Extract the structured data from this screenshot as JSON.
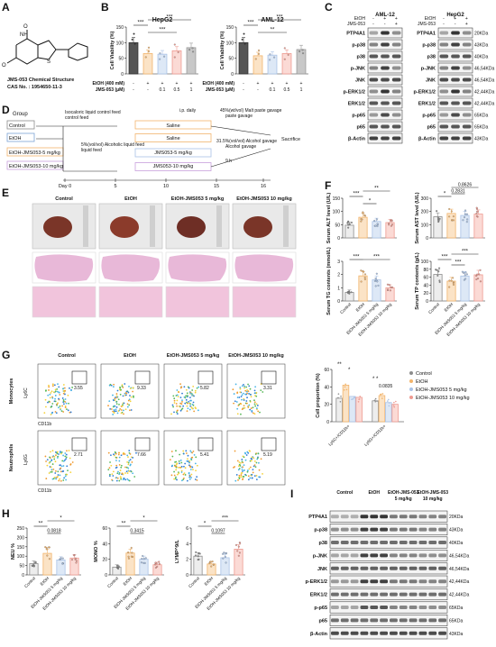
{
  "panels": {
    "A": {
      "letter": "A",
      "caption1": "JMS-053 Chemical Structure",
      "caption2": "CAS No. : 1954650-11-3",
      "atoms": [
        "NH",
        "O",
        "O",
        "S"
      ]
    },
    "B": {
      "letter": "B",
      "etoh_label": "EtOH (400 mM)",
      "jms_label": "JMS-053 (μM)",
      "etoh_signs": [
        "-",
        "+",
        "+",
        "+",
        "+"
      ],
      "jms_doses": [
        "-",
        "-",
        "0.1",
        "0.5",
        "1"
      ],
      "sig": [
        [
          "***",
          "***",
          "***"
        ],
        [
          "***",
          "**",
          "***"
        ]
      ]
    },
    "C": {
      "letter": "C",
      "row_labels": [
        "PTP4A1",
        "p-p38",
        "p38",
        "p-JNK",
        "JNK",
        "p-ERK1/2",
        "ERK1/2",
        "p-p65",
        "p65",
        "β-Actin"
      ],
      "kda": [
        "20KDa",
        "43KDa",
        "40KDa",
        "46,54KDa",
        "46,54KDa",
        "42,44KDa",
        "42,44KDa",
        "65KDa",
        "65KDa",
        "43KDa"
      ],
      "etoh": "EtOH",
      "jms": "JMS-053",
      "signs_etoh": [
        "-",
        "+",
        "+"
      ],
      "signs_jms": [
        "-",
        "-",
        "+"
      ]
    },
    "D": {
      "letter": "D",
      "group": "Group",
      "groups": [
        "Control",
        "EtOH",
        "EtOH-JMS053-5 mg/kg",
        "EtOH-JMS053-10 mg/kg"
      ],
      "notes": [
        "Isocaloric liquid control feed",
        "Isocaloric liquid control feed",
        "5%(vol/vol) Alcoholic liquid feed",
        "i.p. daily",
        "45%(wt/vol) Malt paste gavage",
        "31.5%(vol/vol) Alcohol gavage",
        "9 h",
        "Sacrifice"
      ],
      "bars": [
        "Saline",
        "Saline",
        "JMS053-5 mg/kg",
        "JMS053-10 mg/kg"
      ],
      "days": [
        "Day 0",
        "5",
        "10",
        "15",
        "16"
      ]
    },
    "E": {
      "letter": "E",
      "cols": [
        "Control",
        "EtOH",
        "EtOH-JMS053 5 mg/kg",
        "EtOH-JMS053 10 mg/kg"
      ]
    },
    "F": {
      "letter": "F",
      "sig": [
        [
          "***",
          "*",
          "**"
        ],
        [
          "*",
          "0.8626",
          "0.2831"
        ],
        [
          "***",
          "***"
        ],
        [
          "***",
          "***",
          "***"
        ]
      ]
    },
    "G": {
      "letter": "G",
      "cols": [
        "Control",
        "EtOH",
        "EtOH-JMS053 5 mg/kg",
        "EtOH-JMS053 10 mg/kg"
      ],
      "rows": [
        "Monocytes",
        "Neutrophils"
      ],
      "yaxes": [
        "Ly6C",
        "Ly6G"
      ],
      "xaxis": "CD11b",
      "pcts": [
        [
          "3.55",
          "9.33",
          "5.82",
          "3.31"
        ],
        [
          "2.71",
          "7.66",
          "5.41",
          "5.19"
        ]
      ],
      "sig": [
        "**",
        "*",
        "*",
        "*",
        "0.0835"
      ]
    },
    "H": {
      "letter": "H",
      "sig": [
        [
          "**",
          "0.0818",
          "*"
        ],
        [
          "**",
          "0.3415",
          "*"
        ],
        [
          "*",
          "0.1097",
          "***"
        ]
      ]
    },
    "I": {
      "letter": "I",
      "cols": [
        "Control",
        "EtOH",
        "EtOH-JMS-053 5 mg/kg",
        "EtOH-JMS-053 10 mg/kg"
      ],
      "row_labels": [
        "PTP4A1",
        "p-p38",
        "p38",
        "p-JNK",
        "JNK",
        "p-ERK1/2",
        "ERK1/2",
        "p-p65",
        "p65",
        "β-Actin"
      ],
      "kda": [
        "20KDa",
        "43KDa",
        "40KDa",
        "46,54KDa",
        "46,54KDa",
        "42,44KDa",
        "42,44KDa",
        "65KDa",
        "65KDa",
        "43KDa"
      ]
    },
    "legend": [
      "Control",
      "EtOH",
      "EtOH-JMS053 5 mg/kg",
      "EtOH-JMS053 10 mg/kg"
    ]
  },
  "colors": {
    "control": "#8c8c8c",
    "etoh": "#f2b46b",
    "low": "#a9c2e6",
    "high": "#ee9a90",
    "ctrlFill": "#ededed",
    "etohFill": "#fbe3c6",
    "lowFill": "#dde8f6",
    "highFill": "#fbdad5",
    "B5": "#c8c8c8"
  },
  "chart_data": [
    {
      "id": "B1",
      "type": "bar",
      "title": "HepG2",
      "ylabel": "Cell Viability (%)",
      "ylim": [
        0,
        150
      ],
      "yticks": [
        "0",
        "50",
        "100",
        "150"
      ],
      "values": [
        100,
        65,
        63,
        74,
        84
      ]
    },
    {
      "id": "B2",
      "type": "bar",
      "title": "AML-12",
      "ylabel": "Cell Viability (%)",
      "ylim": [
        0,
        150
      ],
      "yticks": [
        "0",
        "50",
        "100",
        "150"
      ],
      "values": [
        100,
        58,
        60,
        65,
        78
      ]
    },
    {
      "id": "F1",
      "type": "bar",
      "ylabel": "Serum ALT level (U/L)",
      "ylim": [
        0,
        150
      ],
      "yticks": [
        "0",
        "50",
        "100",
        "150"
      ],
      "categories": [
        "Control",
        "EtOH",
        "EtOH-JMS053 5 mg/kg",
        "EtOH-JMS053 10 mg/kg"
      ],
      "values": [
        48,
        78,
        62,
        58
      ]
    },
    {
      "id": "F2",
      "type": "bar",
      "ylabel": "Serum AST level (U/L)",
      "ylim": [
        0,
        300
      ],
      "yticks": [
        "0",
        "100",
        "200",
        "300"
      ],
      "categories": [
        "Control",
        "EtOH",
        "EtOH-JMS053 5 mg/kg",
        "EtOH-JMS053 10 mg/kg"
      ],
      "values": [
        160,
        185,
        170,
        180
      ]
    },
    {
      "id": "F3",
      "type": "bar",
      "ylabel": "Serum TG contents (mmol/L)",
      "ylim": [
        0,
        3
      ],
      "yticks": [
        "0",
        "1",
        "2",
        "3"
      ],
      "categories": [
        "Control",
        "EtOH",
        "EtOH-JMS053 5 mg/kg",
        "EtOH-JMS053 10 mg/kg"
      ],
      "values": [
        0.65,
        1.9,
        1.6,
        1.0
      ]
    },
    {
      "id": "F4",
      "type": "bar",
      "ylabel": "Serum TP contents (g/L)",
      "ylim": [
        0,
        100
      ],
      "yticks": [
        "0",
        "20",
        "40",
        "60",
        "80",
        "100"
      ],
      "categories": [
        "Control",
        "EtOH",
        "EtOH-JMS053 5 mg/kg",
        "EtOH-JMS053 10 mg/kg"
      ],
      "values": [
        67,
        50,
        63,
        66
      ]
    },
    {
      "id": "G1",
      "type": "bar",
      "ylabel": "Cell proportion (%)",
      "ylim": [
        0,
        60
      ],
      "yticks": [
        "0",
        "20",
        "40",
        "60"
      ],
      "categories": [
        "Ly6C+/CD11b+",
        "Ly6G+/CD11b+"
      ],
      "series": [
        {
          "name": "Control",
          "values": [
            27,
            24
          ]
        },
        {
          "name": "EtOH",
          "values": [
            42,
            30
          ]
        },
        {
          "name": "EtOH-JMS053 5 mg/kg",
          "values": [
            29,
            22
          ]
        },
        {
          "name": "EtOH-JMS053 10 mg/kg",
          "values": [
            28,
            20
          ]
        }
      ]
    },
    {
      "id": "H1",
      "type": "bar",
      "ylabel": "NEU %",
      "ylim": [
        0,
        250
      ],
      "yticks": [
        "0",
        "50",
        "100",
        "150",
        "200",
        "250"
      ],
      "categories": [
        "Control",
        "EtOH",
        "EtOH-JMS053 5 mg/kg",
        "EtOH-JMS053 10 mg/kg"
      ],
      "values": [
        60,
        115,
        80,
        90
      ]
    },
    {
      "id": "H2",
      "type": "bar",
      "ylabel": "MONO %",
      "ylim": [
        0,
        60
      ],
      "yticks": [
        "0",
        "20",
        "40",
        "60"
      ],
      "categories": [
        "Control",
        "EtOH",
        "EtOH-JMS053 5 mg/kg",
        "EtOH-JMS053 10 mg/kg"
      ],
      "values": [
        10,
        28,
        20,
        13
      ]
    },
    {
      "id": "H3",
      "type": "bar",
      "ylabel": "LYMP^9/L",
      "ylim": [
        0,
        6
      ],
      "yticks": [
        "0",
        "2",
        "4",
        "6"
      ],
      "categories": [
        "Control",
        "EtOH",
        "EtOH-JMS053 5 mg/kg",
        "EtOH-JMS053 10 mg/kg"
      ],
      "values": [
        2.4,
        1.4,
        2.2,
        3.3
      ]
    }
  ]
}
